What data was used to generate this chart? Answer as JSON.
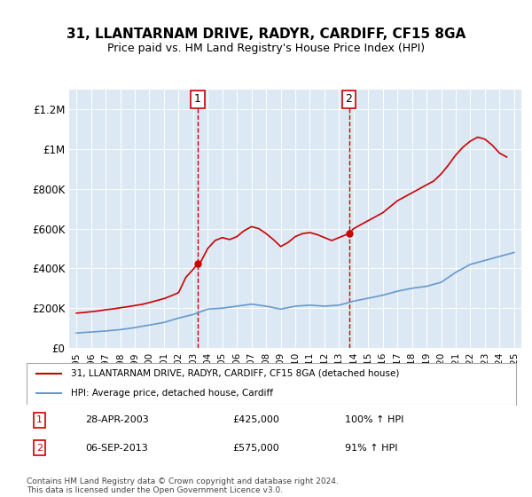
{
  "title": "31, LLANTARNAM DRIVE, RADYR, CARDIFF, CF15 8GA",
  "subtitle": "Price paid vs. HM Land Registry's House Price Index (HPI)",
  "hpi_label": "HPI: Average price, detached house, Cardiff",
  "property_label": "31, LLANTARNAM DRIVE, RADYR, CARDIFF, CF15 8GA (detached house)",
  "hpi_color": "#6699cc",
  "property_color": "#cc0000",
  "vline_color": "#cc0000",
  "background_color": "#dce9f5",
  "plot_bg": "#dce9f5",
  "ylim": [
    0,
    1300000
  ],
  "yticks": [
    0,
    200000,
    400000,
    600000,
    800000,
    1000000,
    1200000
  ],
  "ytick_labels": [
    "£0",
    "£200K",
    "£400K",
    "£600K",
    "£800K",
    "£1M",
    "£1.2M"
  ],
  "transaction1": {
    "date": "28-APR-2003",
    "price": 425000,
    "pct": "100%",
    "dir": "↑",
    "label": "1",
    "year": 2003.32
  },
  "transaction2": {
    "date": "06-SEP-2013",
    "price": 575000,
    "pct": "91%",
    "dir": "↑",
    "label": "2",
    "year": 2013.68
  },
  "footer": "Contains HM Land Registry data © Crown copyright and database right 2024.\nThis data is licensed under the Open Government Licence v3.0.",
  "hpi_data": {
    "years": [
      1995,
      1996,
      1997,
      1998,
      1999,
      2000,
      2001,
      2002,
      2003,
      2004,
      2005,
      2006,
      2007,
      2008,
      2009,
      2010,
      2011,
      2012,
      2013,
      2014,
      2015,
      2016,
      2017,
      2018,
      2019,
      2020,
      2021,
      2022,
      2023,
      2024,
      2025
    ],
    "values": [
      75000,
      80000,
      85000,
      92000,
      102000,
      115000,
      128000,
      150000,
      168000,
      195000,
      200000,
      210000,
      220000,
      210000,
      195000,
      210000,
      215000,
      210000,
      215000,
      235000,
      250000,
      265000,
      285000,
      300000,
      310000,
      330000,
      380000,
      420000,
      440000,
      460000,
      480000
    ]
  },
  "property_data": {
    "years": [
      1995.0,
      1995.5,
      1996.0,
      1996.5,
      1997.0,
      1997.5,
      1998.0,
      1998.5,
      1999.0,
      1999.5,
      2000.0,
      2000.5,
      2001.0,
      2001.5,
      2002.0,
      2002.5,
      2003.0,
      2003.32,
      2003.5,
      2004.0,
      2004.5,
      2005.0,
      2005.5,
      2006.0,
      2006.5,
      2007.0,
      2007.5,
      2008.0,
      2008.5,
      2009.0,
      2009.5,
      2010.0,
      2010.5,
      2011.0,
      2011.5,
      2012.0,
      2012.5,
      2013.0,
      2013.68,
      2014.0,
      2014.5,
      2015.0,
      2015.5,
      2016.0,
      2016.5,
      2017.0,
      2017.5,
      2018.0,
      2018.5,
      2019.0,
      2019.5,
      2020.0,
      2020.5,
      2021.0,
      2021.5,
      2022.0,
      2022.5,
      2023.0,
      2023.5,
      2024.0,
      2024.5
    ],
    "values": [
      175000,
      178000,
      182000,
      186000,
      192000,
      196000,
      202000,
      207000,
      213000,
      219000,
      228000,
      238000,
      248000,
      262000,
      278000,
      355000,
      395000,
      425000,
      430000,
      500000,
      540000,
      555000,
      545000,
      560000,
      590000,
      610000,
      600000,
      575000,
      545000,
      510000,
      530000,
      560000,
      575000,
      580000,
      570000,
      555000,
      540000,
      555000,
      575000,
      600000,
      620000,
      640000,
      660000,
      680000,
      710000,
      740000,
      760000,
      780000,
      800000,
      820000,
      840000,
      875000,
      920000,
      970000,
      1010000,
      1040000,
      1060000,
      1050000,
      1020000,
      980000,
      960000
    ]
  }
}
